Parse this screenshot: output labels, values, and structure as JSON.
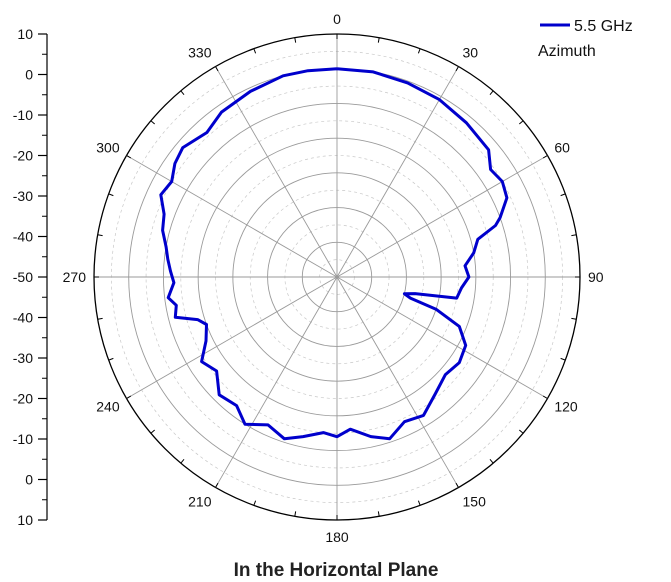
{
  "chart_data": {
    "type": "polar-line",
    "title": "In the Horizontal Plane",
    "radial_axis": {
      "range": [
        -60,
        10
      ],
      "tick_labels": [
        "10",
        "0",
        "-10",
        "-20",
        "-30",
        "-40",
        "-50",
        "-40",
        "-30",
        "-20",
        "-10",
        "0",
        "10"
      ]
    },
    "angular_axis": {
      "direction": "clockwise",
      "zero_at": "top",
      "labels": [
        "0",
        "30",
        "60",
        "90",
        "120",
        "150",
        "180",
        "210",
        "240",
        "270",
        "300",
        "330"
      ]
    },
    "grid": true,
    "legend": {
      "placement": "top-right"
    },
    "series": [
      {
        "name": "5.5 GHz",
        "subtitle": "Azimuth",
        "color": "#0000cc",
        "points": [
          {
            "a": 0,
            "r": 0
          },
          {
            "a": 10,
            "r": 0
          },
          {
            "a": 20,
            "r": -0.5
          },
          {
            "a": 30,
            "r": -1
          },
          {
            "a": 40,
            "r": -2
          },
          {
            "a": 50,
            "r": -3
          },
          {
            "a": 55,
            "r": -6
          },
          {
            "a": 60,
            "r": -5
          },
          {
            "a": 65,
            "r": -6
          },
          {
            "a": 70,
            "r": -10
          },
          {
            "a": 72,
            "r": -12
          },
          {
            "a": 75,
            "r": -18
          },
          {
            "a": 80,
            "r": -20
          },
          {
            "a": 85,
            "r": -23
          },
          {
            "a": 90,
            "r": -22
          },
          {
            "a": 95,
            "r": -24
          },
          {
            "a": 100,
            "r": -25
          },
          {
            "a": 102,
            "r": -37
          },
          {
            "a": 104,
            "r": -40
          },
          {
            "a": 106,
            "r": -38
          },
          {
            "a": 108,
            "r": -30
          },
          {
            "a": 112,
            "r": -22
          },
          {
            "a": 118,
            "r": -18
          },
          {
            "a": 125,
            "r": -17
          },
          {
            "a": 132,
            "r": -18
          },
          {
            "a": 140,
            "r": -16
          },
          {
            "a": 148,
            "r": -13
          },
          {
            "a": 155,
            "r": -14
          },
          {
            "a": 162,
            "r": -11
          },
          {
            "a": 168,
            "r": -13
          },
          {
            "a": 175,
            "r": -16
          },
          {
            "a": 180,
            "r": -14
          },
          {
            "a": 185,
            "r": -15
          },
          {
            "a": 192,
            "r": -13
          },
          {
            "a": 198,
            "r": -11
          },
          {
            "a": 205,
            "r": -13
          },
          {
            "a": 212,
            "r": -10
          },
          {
            "a": 218,
            "r": -13
          },
          {
            "a": 225,
            "r": -12
          },
          {
            "a": 232,
            "r": -16
          },
          {
            "a": 238,
            "r": -14
          },
          {
            "a": 244,
            "r": -18
          },
          {
            "a": 250,
            "r": -20
          },
          {
            "a": 253,
            "r": -18
          },
          {
            "a": 256,
            "r": -12
          },
          {
            "a": 260,
            "r": -13
          },
          {
            "a": 263,
            "r": -11
          },
          {
            "a": 268,
            "r": -13
          },
          {
            "a": 272,
            "r": -12
          },
          {
            "a": 276,
            "r": -11
          },
          {
            "a": 280,
            "r": -10
          },
          {
            "a": 285,
            "r": -8
          },
          {
            "a": 290,
            "r": -7
          },
          {
            "a": 295,
            "r": -4
          },
          {
            "a": 300,
            "r": -5
          },
          {
            "a": 305,
            "r": -3
          },
          {
            "a": 310,
            "r": -2
          },
          {
            "a": 318,
            "r": -4
          },
          {
            "a": 325,
            "r": -2
          },
          {
            "a": 335,
            "r": -1
          },
          {
            "a": 345,
            "r": 0
          },
          {
            "a": 352,
            "r": 0
          },
          {
            "a": 360,
            "r": 0
          }
        ]
      }
    ]
  }
}
